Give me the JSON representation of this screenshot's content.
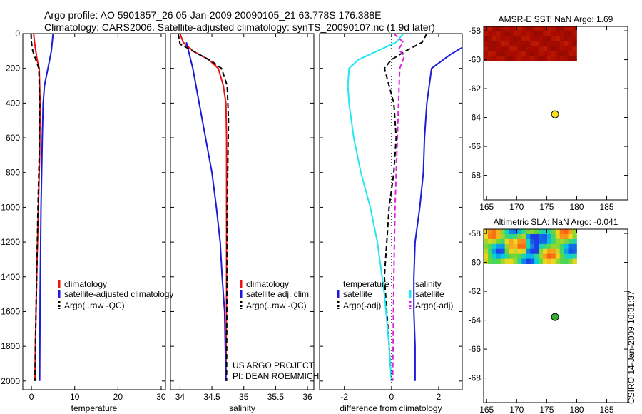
{
  "header": {
    "title_line1": "Argo profile: AO 5901857_26 05-Jan-2009 20090105_21 63.778S 176.388E",
    "title_line2": "Climatology: CARS2006. Satellite-adjusted climatology: synTS_20090107.nc (1.9d later)"
  },
  "footer": {
    "credit_line1": "US ARGO PROJECT",
    "credit_line2": "PI: DEAN ROEMMICH",
    "stamp": "CSIRO 14-Jan-2009 10:31:37"
  },
  "colors": {
    "climatology": "#ee1111",
    "satellite": "#1a1ad8",
    "argo": "#000000",
    "satellite_salinity": "#22e6f0",
    "argo_salinity_adj": "#e020e0",
    "sst_field": "#a80a00",
    "sst_argo_marker": "#ffe020",
    "sla_argo_marker": "#33b033"
  },
  "chart_data": [
    {
      "type": "line",
      "panel": "temperature",
      "xlabel": "temperature",
      "ylabel": "",
      "xlim": [
        -2,
        31
      ],
      "ylim": [
        2050,
        0
      ],
      "xticks": [
        0,
        10,
        20,
        30
      ],
      "yticks": [
        0,
        200,
        400,
        600,
        800,
        1000,
        1200,
        1400,
        1600,
        1800,
        2000
      ],
      "series": [
        {
          "name": "climatology",
          "color": "#ee1111",
          "dash": "solid",
          "x": [
            0.5,
            0.7,
            1.0,
            1.3,
            1.8,
            2.0,
            1.9,
            1.6,
            1.2,
            0.9,
            0.8
          ],
          "y": [
            0,
            50,
            100,
            150,
            200,
            400,
            700,
            1000,
            1400,
            1800,
            2000
          ]
        },
        {
          "name": "satellite-adjusted climatology",
          "color": "#1a1ad8",
          "dash": "solid",
          "x": [
            5.0,
            4.6,
            3.8,
            3.0,
            2.7,
            2.5,
            2.2,
            2.0,
            1.9
          ],
          "y": [
            0,
            100,
            200,
            300,
            400,
            600,
            1000,
            1500,
            2000
          ]
        },
        {
          "name": "Argo(..raw -QC)",
          "color": "#000000",
          "dash": "dash",
          "x": [
            -0.1,
            0.0,
            0.3,
            1.0,
            1.7,
            1.9,
            1.8,
            1.5,
            1.2,
            0.9,
            0.8
          ],
          "y": [
            0,
            50,
            100,
            150,
            200,
            400,
            700,
            1000,
            1400,
            1800,
            2000
          ]
        }
      ]
    },
    {
      "type": "line",
      "panel": "salinity",
      "xlabel": "salinity",
      "ylabel": "",
      "xlim": [
        33.85,
        36.1
      ],
      "ylim": [
        2050,
        0
      ],
      "xticks": [
        34,
        34.5,
        35,
        35.5,
        36
      ],
      "series": [
        {
          "name": "climatology",
          "color": "#ee1111",
          "dash": "solid",
          "x": [
            34.0,
            34.05,
            34.2,
            34.45,
            34.6,
            34.68,
            34.72,
            34.73,
            34.73,
            34.73,
            34.72
          ],
          "y": [
            0,
            50,
            100,
            150,
            200,
            300,
            400,
            600,
            1000,
            1500,
            2000
          ]
        },
        {
          "name": "satellite adj. clim.",
          "color": "#1a1ad8",
          "dash": "solid",
          "x": [
            34.1,
            34.2,
            34.3,
            34.4,
            34.5,
            34.57,
            34.63,
            34.66,
            34.7,
            34.71,
            34.72
          ],
          "y": [
            50,
            200,
            400,
            600,
            800,
            1000,
            1200,
            1400,
            1600,
            1800,
            2000
          ]
        },
        {
          "name": "Argo(..raw -QC)",
          "color": "#000000",
          "dash": "dash",
          "x": [
            33.97,
            34.0,
            34.25,
            34.5,
            34.65,
            34.74,
            34.76,
            34.74,
            34.73
          ],
          "y": [
            0,
            60,
            110,
            160,
            200,
            300,
            500,
            1000,
            2000
          ]
        }
      ]
    },
    {
      "type": "line",
      "panel": "difference",
      "xlabel": "difference from climatology",
      "ylabel": "",
      "xlim": [
        -3.05,
        3.0
      ],
      "ylim": [
        2050,
        0
      ],
      "xticks": [
        -2,
        0,
        2
      ],
      "legend_headers": [
        "temperature",
        "salinity"
      ],
      "series": [
        {
          "name": "satellite",
          "quantity": "temperature",
          "color": "#1a1ad8",
          "dash": "solid",
          "x": [
            3.0,
            2.5,
            1.7,
            1.5,
            1.4,
            1.35,
            1.2,
            1.0,
            0.95,
            0.95,
            1.0,
            1.0
          ],
          "y": [
            80,
            120,
            200,
            400,
            600,
            800,
            1000,
            1200,
            1400,
            1600,
            1800,
            2000
          ]
        },
        {
          "name": "Argo(-adj)",
          "quantity": "temperature",
          "color": "#000000",
          "dash": "dash",
          "x": [
            1.5,
            1.3,
            0.6,
            0.0,
            -0.3,
            0.1,
            0.2,
            0.1,
            -0.1,
            -0.2,
            -0.3,
            -0.1,
            0.0
          ],
          "y": [
            0,
            50,
            100,
            150,
            200,
            400,
            600,
            800,
            1000,
            1200,
            1400,
            1800,
            2000
          ]
        },
        {
          "name": "satellite",
          "quantity": "salinity",
          "color": "#22e6f0",
          "dash": "solid",
          "x": [
            0.5,
            0.2,
            -0.6,
            -1.4,
            -1.8,
            -1.85,
            -1.8,
            -1.6,
            -1.3,
            -0.9,
            -0.6,
            -0.3,
            -0.1,
            0.0
          ],
          "y": [
            0,
            50,
            100,
            150,
            200,
            300,
            400,
            600,
            800,
            1000,
            1200,
            1500,
            1800,
            2000
          ]
        },
        {
          "name": "Argo(-adj)",
          "quantity": "salinity",
          "color": "#e020e0",
          "dash": "dash",
          "x": [
            0.1,
            0.5,
            0.3,
            0.55,
            0.35,
            0.3,
            0.25,
            0.2,
            0.15,
            0.1,
            0.05
          ],
          "y": [
            0,
            50,
            90,
            130,
            200,
            400,
            600,
            800,
            1000,
            1400,
            2000
          ]
        }
      ]
    },
    {
      "type": "heatmap",
      "panel": "sst-map",
      "title": "AMSR-E SST: NaN Argo: 1.69",
      "xlim": [
        164.5,
        188.5
      ],
      "ylim": [
        -69.7,
        -57.7
      ],
      "xticks": [
        165,
        170,
        175,
        180,
        185
      ],
      "yticks": [
        -58,
        -60,
        -62,
        -64,
        -66,
        -68
      ],
      "field_extent": {
        "lon": [
          164.5,
          180
        ],
        "lat": [
          -60.1,
          -57.7
        ]
      },
      "argo_position": {
        "lon": 176.388,
        "lat": -63.778
      }
    },
    {
      "type": "heatmap",
      "panel": "sla-map",
      "title": "Altimetric SLA: NaN Argo: -0.041",
      "xlim": [
        164.5,
        188.5
      ],
      "ylim": [
        -69.7,
        -57.7
      ],
      "xticks": [
        165,
        170,
        175,
        180,
        185
      ],
      "yticks": [
        -58,
        -60,
        -62,
        -64,
        -66,
        -68
      ],
      "field_extent": {
        "lon": [
          164.5,
          180
        ],
        "lat": [
          -60.1,
          -57.7
        ]
      },
      "argo_position": {
        "lon": 176.388,
        "lat": -63.778
      }
    }
  ],
  "legends": {
    "temperature": [
      "climatology",
      "satellite-adjusted climatology",
      "Argo(..raw -QC)"
    ],
    "salinity": [
      "climatology",
      "satellite adj. clim.",
      "Argo(..raw -QC)"
    ]
  }
}
